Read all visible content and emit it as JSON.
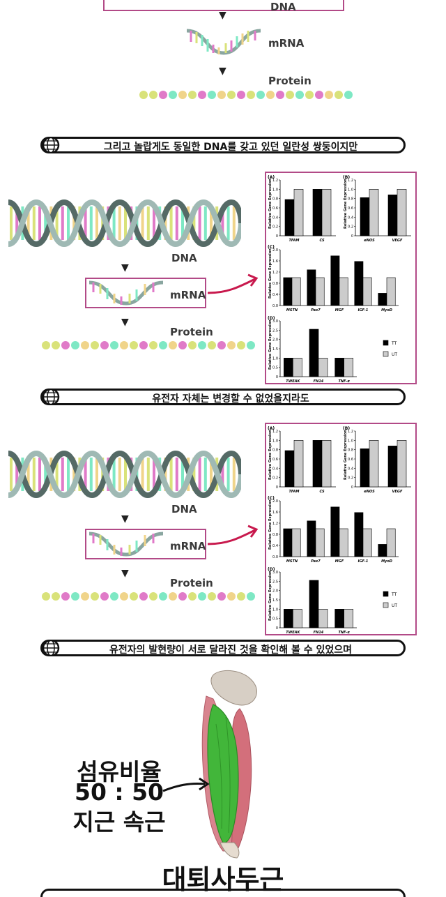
{
  "section1": {
    "dna_label": "DNA",
    "mrna_label": "mRNA",
    "protein_label": "Protein"
  },
  "captions": [
    "그리고 놀랍게도 동일한 DNA를 갖고 있던 일란성 쌍둥이지만",
    "유전자 자체는 변경할 수 없었을지라도",
    "유전자의 발현량이 서로 달라진 것을 확인해 볼 수 있었으며"
  ],
  "diagram": {
    "dna_label": "DNA",
    "mrna_label": "mRNA",
    "protein_label": "Protein"
  },
  "bead_colors": [
    "#d9e27a",
    "#e07ac8",
    "#7ee8c4",
    "#f0d48a"
  ],
  "chart_data": [
    {
      "type": "bar",
      "panel": "(A)",
      "ylabel": "Relative Gene Expression",
      "categories": [
        "TFAM",
        "CS"
      ],
      "ylim": [
        0,
        1.2
      ],
      "yticks": [
        "0",
        "0.2",
        "0.4",
        "0.6",
        "0.8",
        "1.0",
        "1.2"
      ],
      "series": [
        {
          "name": "TT",
          "values": [
            0.78,
            1.0
          ]
        },
        {
          "name": "UT",
          "values": [
            1.0,
            1.0
          ]
        }
      ]
    },
    {
      "type": "bar",
      "panel": "(B)",
      "ylabel": "Relative Gene Expression",
      "categories": [
        "eNOS",
        "VEGF"
      ],
      "ylim": [
        0,
        1.2
      ],
      "yticks": [
        "0",
        "0.2",
        "0.4",
        "0.6",
        "0.8",
        "1.0",
        "1.2"
      ],
      "series": [
        {
          "name": "TT",
          "values": [
            0.82,
            0.88
          ]
        },
        {
          "name": "UT",
          "values": [
            1.0,
            1.0
          ]
        }
      ]
    },
    {
      "type": "bar",
      "panel": "(C)",
      "ylabel": "Relative Gene Expression",
      "categories": [
        "MSTN",
        "Pax7",
        "MGF",
        "IGF-1",
        "MyoD"
      ],
      "ylim": [
        0,
        2.0
      ],
      "yticks": [
        "0.0",
        "0.4",
        "0.8",
        "1.2",
        "1.6",
        "2.0"
      ],
      "series": [
        {
          "name": "TT",
          "values": [
            1.0,
            1.28,
            1.78,
            1.58,
            0.44
          ]
        },
        {
          "name": "UT",
          "values": [
            1.0,
            1.0,
            1.0,
            1.0,
            1.0
          ]
        }
      ]
    },
    {
      "type": "bar",
      "panel": "(D)",
      "ylabel": "Relative Gene Expression",
      "categories": [
        "TWEAK",
        "FN14",
        "TNF-α"
      ],
      "ylim": [
        0,
        3.0
      ],
      "yticks": [
        "0",
        "0.5",
        "1.0",
        "1.5",
        "2.0",
        "2.5",
        "3.0"
      ],
      "series": [
        {
          "name": "TT",
          "values": [
            1.0,
            2.55,
            1.0
          ]
        },
        {
          "name": "UT",
          "values": [
            1.0,
            1.0,
            1.0
          ]
        }
      ],
      "legend": [
        "TT",
        "UT"
      ]
    }
  ],
  "muscle": {
    "lines": [
      "섬유비율",
      "50 : 50",
      "지근 속근"
    ],
    "title": "대퇴사두근"
  }
}
